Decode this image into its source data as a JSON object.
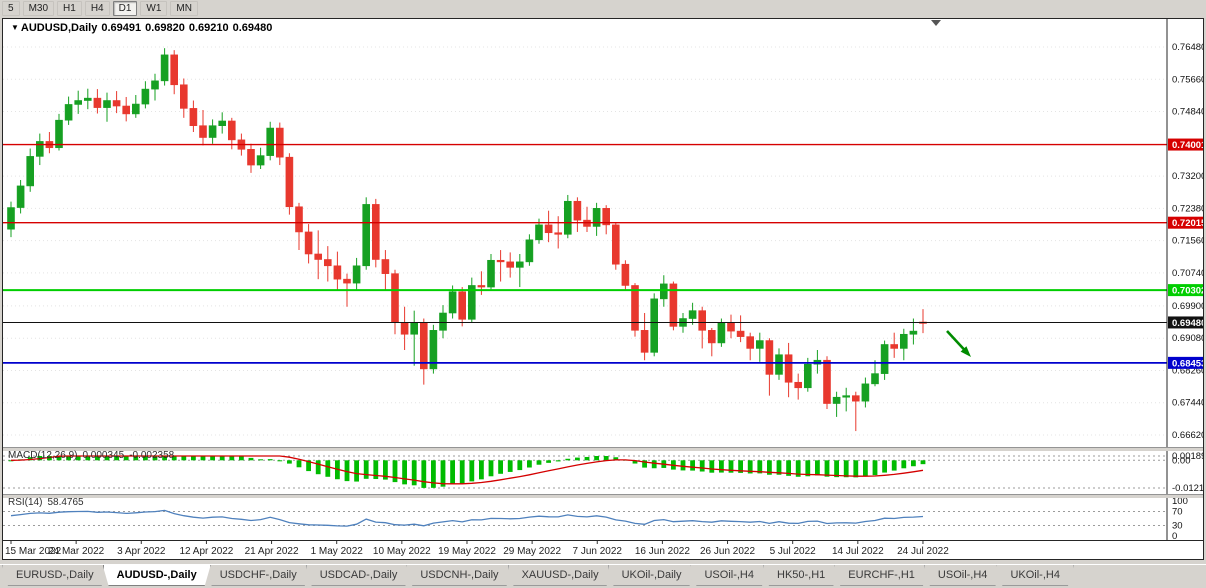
{
  "toolbar": {
    "timeframes": [
      {
        "label": "5",
        "active": false
      },
      {
        "label": "M30",
        "active": false
      },
      {
        "label": "H1",
        "active": false
      },
      {
        "label": "H4",
        "active": false
      },
      {
        "label": "D1",
        "active": true
      },
      {
        "label": "W1",
        "active": false
      },
      {
        "label": "MN",
        "active": false
      }
    ]
  },
  "chart_data": {
    "type": "candlestick",
    "symbol": "AUDUSD",
    "timeframe": "Daily",
    "ohlc": {
      "symbol": "AUDUSD,Daily",
      "open": "0.69491",
      "high": "0.69820",
      "low": "0.69210",
      "close": "0.69480"
    },
    "colors": {
      "up": "#16a022",
      "down": "#e8382e",
      "macd_hist": "#00bb00",
      "macd_signal": "#d40000",
      "rsi_line": "#4f81bd"
    },
    "price_axis": [
      {
        "text": "0.76480",
        "value": 0.7648
      },
      {
        "text": "0.75660",
        "value": 0.7566
      },
      {
        "text": "0.74840",
        "value": 0.7484
      },
      {
        "text": "0.73200",
        "value": 0.732
      },
      {
        "text": "0.72380",
        "value": 0.7238
      },
      {
        "text": "0.71560",
        "value": 0.7156
      },
      {
        "text": "0.70740",
        "value": 0.7074
      },
      {
        "text": "0.69900",
        "value": 0.699
      },
      {
        "text": "0.69080",
        "value": 0.6908
      },
      {
        "text": "0.68260",
        "value": 0.6826
      },
      {
        "text": "0.67440",
        "value": 0.6744
      },
      {
        "text": "0.66620",
        "value": 0.6662
      }
    ],
    "hlines": [
      {
        "value": 0.74001,
        "label": "0.74001",
        "color": "#d60000",
        "width": 1.4
      },
      {
        "value": 0.72015,
        "label": "0.72015",
        "color": "#d60000",
        "width": 1.4
      },
      {
        "value": 0.70302,
        "label": "0.70302",
        "color": "#00ce00",
        "width": 2
      },
      {
        "value": 0.6948,
        "label": "0.69480",
        "color": "#111111",
        "width": 1
      },
      {
        "value": 0.68453,
        "label": "0.68453",
        "color": "#0000cd",
        "width": 1.8
      }
    ],
    "annotation_arrow": {
      "from": [
        944,
        312
      ],
      "to": [
        968,
        338
      ],
      "color": "#008b00"
    },
    "date_ticks": [
      "15 Mar 2022",
      "24 Mar 2022",
      "3 Apr 2022",
      "12 Apr 2022",
      "21 Apr 2022",
      "1 May 2022",
      "10 May 2022",
      "19 May 2022",
      "29 May 2022",
      "7 Jun 2022",
      "16 Jun 2022",
      "26 Jun 2022",
      "5 Jul 2022",
      "14 Jul 2022",
      "24 Jul 2022"
    ],
    "macd": {
      "name": "MACD(12,26,9)",
      "value_main": "0.000345",
      "value_signal": "-0.002358",
      "axis": [
        {
          "text": "0.00189",
          "value": 0.00189,
          "dash": true
        },
        {
          "text": "0.00",
          "value": 0,
          "dash": true
        },
        {
          "text": "-0.01216",
          "value": -0.01216,
          "dash": true
        }
      ]
    },
    "rsi": {
      "name": "RSI(14)",
      "value": "58.4765",
      "axis": [
        {
          "text": "100",
          "value": 100,
          "dash": false
        },
        {
          "text": "70",
          "value": 70,
          "dash": true
        },
        {
          "text": "30",
          "value": 30,
          "dash": true
        },
        {
          "text": "0",
          "value": 0,
          "dash": false
        }
      ]
    },
    "candles": [
      [
        0.7185,
        0.7255,
        0.7165,
        0.724
      ],
      [
        0.724,
        0.731,
        0.7225,
        0.7295
      ],
      [
        0.7295,
        0.739,
        0.728,
        0.737
      ],
      [
        0.737,
        0.7428,
        0.7348,
        0.7408
      ],
      [
        0.7408,
        0.7432,
        0.7378,
        0.7392
      ],
      [
        0.7392,
        0.7478,
        0.7385,
        0.7462
      ],
      [
        0.7462,
        0.7522,
        0.745,
        0.7502
      ],
      [
        0.7502,
        0.7537,
        0.7478,
        0.7512
      ],
      [
        0.7512,
        0.7542,
        0.749,
        0.7518
      ],
      [
        0.7518,
        0.7541,
        0.7479,
        0.7494
      ],
      [
        0.7494,
        0.7532,
        0.7458,
        0.7512
      ],
      [
        0.7512,
        0.7536,
        0.748,
        0.7498
      ],
      [
        0.7498,
        0.7521,
        0.7459,
        0.7478
      ],
      [
        0.7478,
        0.7526,
        0.7468,
        0.7503
      ],
      [
        0.7503,
        0.7561,
        0.7492,
        0.7541
      ],
      [
        0.7541,
        0.758,
        0.7512,
        0.7562
      ],
      [
        0.7562,
        0.7645,
        0.755,
        0.7628
      ],
      [
        0.7628,
        0.764,
        0.7528,
        0.7552
      ],
      [
        0.7552,
        0.7568,
        0.7468,
        0.7492
      ],
      [
        0.7492,
        0.7512,
        0.7432,
        0.7448
      ],
      [
        0.7448,
        0.7488,
        0.7398,
        0.7418
      ],
      [
        0.7418,
        0.7464,
        0.7402,
        0.7448
      ],
      [
        0.7448,
        0.7482,
        0.7428,
        0.746
      ],
      [
        0.746,
        0.7468,
        0.7388,
        0.7412
      ],
      [
        0.7412,
        0.7428,
        0.7372,
        0.7388
      ],
      [
        0.7388,
        0.7402,
        0.7328,
        0.7348
      ],
      [
        0.7348,
        0.7392,
        0.7338,
        0.7372
      ],
      [
        0.7372,
        0.7458,
        0.736,
        0.7442
      ],
      [
        0.7442,
        0.7456,
        0.7348,
        0.7368
      ],
      [
        0.7368,
        0.7378,
        0.7222,
        0.7242
      ],
      [
        0.7242,
        0.7252,
        0.7132,
        0.7178
      ],
      [
        0.7178,
        0.7198,
        0.7098,
        0.7122
      ],
      [
        0.7122,
        0.7182,
        0.7058,
        0.7108
      ],
      [
        0.7108,
        0.7142,
        0.7052,
        0.7092
      ],
      [
        0.7092,
        0.7128,
        0.7028,
        0.7058
      ],
      [
        0.7058,
        0.7072,
        0.6988,
        0.7048
      ],
      [
        0.7048,
        0.7112,
        0.7032,
        0.7092
      ],
      [
        0.7092,
        0.7266,
        0.7082,
        0.7248
      ],
      [
        0.7248,
        0.7262,
        0.7088,
        0.7108
      ],
      [
        0.7108,
        0.7132,
        0.7028,
        0.7072
      ],
      [
        0.7072,
        0.7082,
        0.6918,
        0.6948
      ],
      [
        0.6948,
        0.6988,
        0.6878,
        0.6918
      ],
      [
        0.6918,
        0.6978,
        0.6838,
        0.6948
      ],
      [
        0.6948,
        0.6958,
        0.679,
        0.683
      ],
      [
        0.683,
        0.6942,
        0.6818,
        0.6928
      ],
      [
        0.6928,
        0.6992,
        0.6908,
        0.6972
      ],
      [
        0.6972,
        0.7042,
        0.6958,
        0.7026
      ],
      [
        0.7026,
        0.7038,
        0.6938,
        0.6956
      ],
      [
        0.6956,
        0.7062,
        0.6948,
        0.7042
      ],
      [
        0.7042,
        0.7078,
        0.7018,
        0.7038
      ],
      [
        0.7038,
        0.7122,
        0.7032,
        0.7106
      ],
      [
        0.7106,
        0.7132,
        0.7052,
        0.7102
      ],
      [
        0.7102,
        0.7126,
        0.7062,
        0.7088
      ],
      [
        0.7088,
        0.7122,
        0.7038,
        0.7102
      ],
      [
        0.7102,
        0.7172,
        0.7092,
        0.7158
      ],
      [
        0.7158,
        0.7212,
        0.7148,
        0.7196
      ],
      [
        0.7196,
        0.7232,
        0.7152,
        0.7176
      ],
      [
        0.7176,
        0.7218,
        0.7136,
        0.7172
      ],
      [
        0.7172,
        0.7272,
        0.7162,
        0.7256
      ],
      [
        0.7256,
        0.7266,
        0.7178,
        0.7208
      ],
      [
        0.7208,
        0.7242,
        0.7178,
        0.7192
      ],
      [
        0.7192,
        0.7252,
        0.7168,
        0.7238
      ],
      [
        0.7238,
        0.7246,
        0.7172,
        0.7196
      ],
      [
        0.7196,
        0.7202,
        0.7082,
        0.7096
      ],
      [
        0.7096,
        0.7106,
        0.7032,
        0.7042
      ],
      [
        0.7042,
        0.7048,
        0.6912,
        0.6928
      ],
      [
        0.6928,
        0.6972,
        0.6852,
        0.6872
      ],
      [
        0.6872,
        0.7022,
        0.6862,
        0.7008
      ],
      [
        0.7008,
        0.7068,
        0.6988,
        0.7046
      ],
      [
        0.7046,
        0.7052,
        0.6928,
        0.6938
      ],
      [
        0.6938,
        0.6972,
        0.6922,
        0.6958
      ],
      [
        0.6958,
        0.6998,
        0.6942,
        0.6978
      ],
      [
        0.6978,
        0.6988,
        0.6882,
        0.6928
      ],
      [
        0.6928,
        0.6934,
        0.6862,
        0.6896
      ],
      [
        0.6896,
        0.6958,
        0.6886,
        0.6946
      ],
      [
        0.6946,
        0.6968,
        0.6908,
        0.6926
      ],
      [
        0.6926,
        0.6966,
        0.6898,
        0.6912
      ],
      [
        0.6912,
        0.6922,
        0.6852,
        0.6882
      ],
      [
        0.6882,
        0.6922,
        0.6848,
        0.6902
      ],
      [
        0.6902,
        0.6908,
        0.6762,
        0.6816
      ],
      [
        0.6816,
        0.6882,
        0.6802,
        0.6866
      ],
      [
        0.6866,
        0.6896,
        0.6758,
        0.6796
      ],
      [
        0.6796,
        0.6818,
        0.6752,
        0.6782
      ],
      [
        0.6782,
        0.6858,
        0.6772,
        0.6842
      ],
      [
        0.6842,
        0.6878,
        0.6818,
        0.6852
      ],
      [
        0.6852,
        0.6862,
        0.6728,
        0.6742
      ],
      [
        0.6742,
        0.6772,
        0.6708,
        0.6758
      ],
      [
        0.6758,
        0.6782,
        0.6722,
        0.6762
      ],
      [
        0.6762,
        0.6772,
        0.6672,
        0.6748
      ],
      [
        0.6748,
        0.6808,
        0.6732,
        0.6792
      ],
      [
        0.6792,
        0.6852,
        0.6786,
        0.6818
      ],
      [
        0.6818,
        0.6902,
        0.6802,
        0.6892
      ],
      [
        0.6892,
        0.6922,
        0.6858,
        0.6882
      ],
      [
        0.6882,
        0.6932,
        0.6852,
        0.6918
      ],
      [
        0.6918,
        0.6958,
        0.6892,
        0.6926
      ],
      [
        0.69491,
        0.6982,
        0.6921,
        0.6948
      ]
    ]
  },
  "tabs": [
    {
      "label": "EURUSD-,Daily",
      "active": false
    },
    {
      "label": "AUDUSD-,Daily",
      "active": true
    },
    {
      "label": "USDCHF-,Daily",
      "active": false
    },
    {
      "label": "USDCAD-,Daily",
      "active": false
    },
    {
      "label": "USDCNH-,Daily",
      "active": false
    },
    {
      "label": "XAUUSD-,Daily",
      "active": false
    },
    {
      "label": "UKOil-,Daily",
      "active": false
    },
    {
      "label": "USOil-,H4",
      "active": false
    },
    {
      "label": "HK50-,H1",
      "active": false
    },
    {
      "label": "EURCHF-,H1",
      "active": false
    },
    {
      "label": "USOil-,H4 ",
      "active": false
    },
    {
      "label": "UKOil-,H4",
      "active": false
    }
  ]
}
